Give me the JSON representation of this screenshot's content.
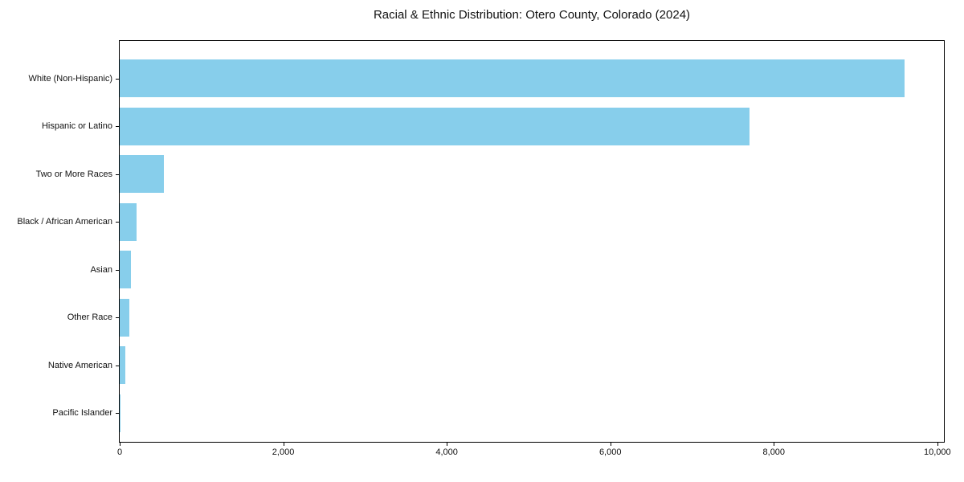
{
  "chart_data": {
    "type": "bar",
    "orientation": "horizontal",
    "title": "Racial & Ethnic Distribution: Otero County, Colorado (2024)",
    "categories": [
      "White (Non-Hispanic)",
      "Hispanic or Latino",
      "Two or More Races",
      "Black / African American",
      "Asian",
      "Other Race",
      "Native American",
      "Pacific Islander"
    ],
    "values": [
      9600,
      7700,
      540,
      210,
      140,
      120,
      70,
      10
    ],
    "xlabel": "",
    "ylabel": "",
    "xlim": [
      0,
      10080
    ],
    "xticks": {
      "values": [
        0,
        2000,
        4000,
        6000,
        8000,
        10000
      ],
      "labels": [
        "0",
        "2,000",
        "4,000",
        "6,000",
        "8,000",
        "10,000"
      ]
    },
    "bar_color": "#87CEEB",
    "axis_color": "#000000",
    "text_color": "#111111",
    "background": "#ffffff",
    "grid": false,
    "legend": null,
    "sort_order": "descending"
  }
}
